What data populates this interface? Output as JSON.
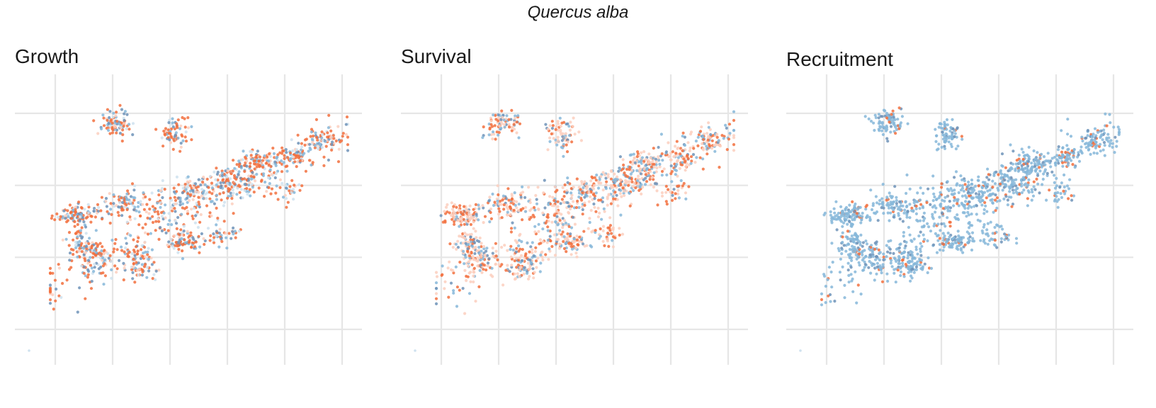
{
  "figure": {
    "title": "Quercus alba"
  },
  "colors": {
    "a": "#f2703e",
    "b": "#86b7d9",
    "c": "#6f93b8",
    "faint_a": "#fbcfbe",
    "faint_b": "#cfe2ef",
    "grid": "#e6e6e6"
  },
  "chart_data": [
    {
      "type": "scatter",
      "title": "Growth",
      "xlim": [
        0,
        10
      ],
      "ylim": [
        0,
        8
      ],
      "grid": true,
      "mix": "a"
    },
    {
      "type": "scatter",
      "title": "Survival",
      "xlim": [
        0,
        10
      ],
      "ylim": [
        0,
        8
      ],
      "grid": true,
      "mix": "survival"
    },
    {
      "type": "scatter",
      "title": "Recruitment",
      "xlim": [
        0,
        10
      ],
      "ylim": [
        0,
        8
      ],
      "grid": true,
      "mix": "b"
    }
  ]
}
